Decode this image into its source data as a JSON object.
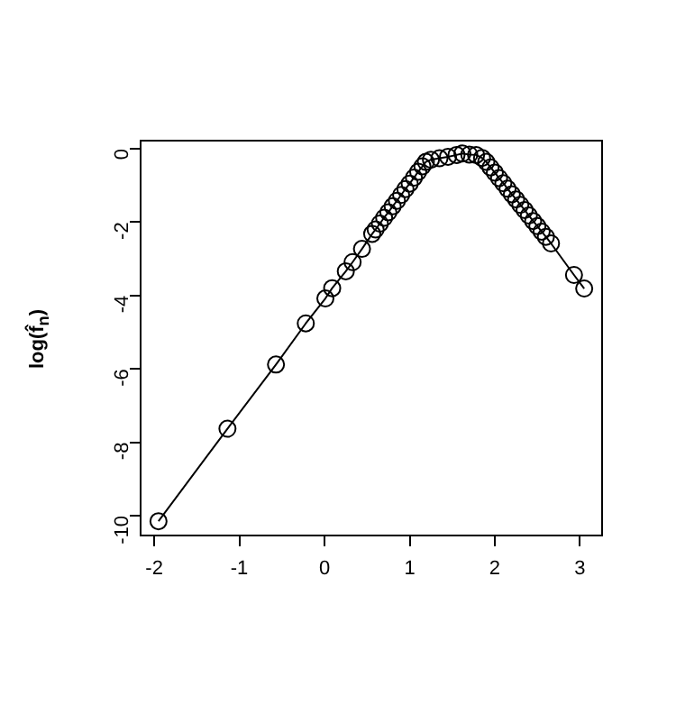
{
  "chart_data": {
    "type": "line",
    "ylabel": "log(f̂$_{n}$)",
    "marker": "circle",
    "line_style": "solid",
    "grid": false,
    "legend": false,
    "xlim": [
      -2.16,
      3.26
    ],
    "xticks": [
      -2,
      -1,
      0,
      1,
      2,
      3
    ],
    "ylim": [
      -10.54,
      0.22
    ],
    "yticks": [
      -10,
      -8,
      -6,
      -4,
      -2,
      0
    ],
    "series": [
      {
        "color": "#000000",
        "x": [
          -1.95,
          -1.14,
          -0.57,
          -0.22,
          0.01,
          0.09,
          0.25,
          0.33,
          0.44,
          0.56,
          0.6,
          0.65,
          0.7,
          0.75,
          0.8,
          0.85,
          0.9,
          0.95,
          1.0,
          1.05,
          1.1,
          1.15,
          1.19,
          1.25,
          1.35,
          1.45,
          1.55,
          1.62,
          1.7,
          1.78,
          1.85,
          1.9,
          1.95,
          2.0,
          2.05,
          2.1,
          2.15,
          2.2,
          2.25,
          2.3,
          2.35,
          2.4,
          2.45,
          2.5,
          2.55,
          2.6,
          2.66,
          2.93,
          3.05
        ],
        "values": [
          -10.15,
          -7.63,
          -5.88,
          -4.76,
          -4.08,
          -3.8,
          -3.34,
          -3.09,
          -2.73,
          -2.32,
          -2.2,
          -2.04,
          -1.88,
          -1.73,
          -1.57,
          -1.42,
          -1.26,
          -1.1,
          -0.95,
          -0.79,
          -0.63,
          -0.48,
          -0.36,
          -0.3,
          -0.26,
          -0.22,
          -0.17,
          -0.13,
          -0.16,
          -0.17,
          -0.25,
          -0.36,
          -0.51,
          -0.65,
          -0.8,
          -0.94,
          -1.09,
          -1.24,
          -1.38,
          -1.53,
          -1.67,
          -1.82,
          -1.97,
          -2.11,
          -2.26,
          -2.4,
          -2.58,
          -3.44,
          -3.81
        ]
      }
    ]
  }
}
